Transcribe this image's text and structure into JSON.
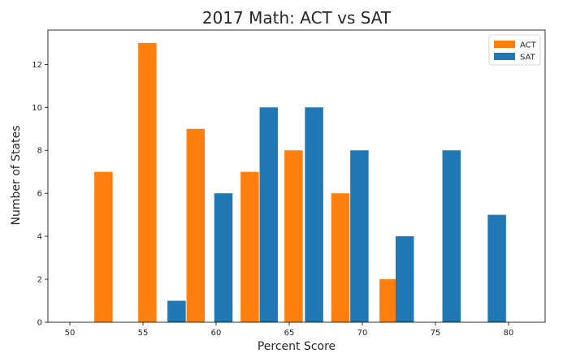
{
  "chart_data": {
    "type": "bar",
    "title": "2017 Math: ACT vs SAT",
    "xlabel": "Percent Score",
    "ylabel": "Number of States",
    "xlim": [
      48.5,
      82.5
    ],
    "ylim": [
      0,
      13.6
    ],
    "x_ticks": [
      50,
      55,
      60,
      65,
      70,
      75,
      80
    ],
    "y_ticks": [
      0,
      2,
      4,
      6,
      8,
      10,
      12
    ],
    "grid": false,
    "legend_position": "top-right",
    "bar_width": 1.25,
    "series": [
      {
        "name": "ACT",
        "color": "#ff7f0e",
        "points": [
          {
            "x": 52.3,
            "y": 7
          },
          {
            "x": 55.3,
            "y": 13
          },
          {
            "x": 58.6,
            "y": 9
          },
          {
            "x": 62.3,
            "y": 7
          },
          {
            "x": 65.3,
            "y": 8
          },
          {
            "x": 68.5,
            "y": 6
          },
          {
            "x": 71.8,
            "y": 2
          }
        ]
      },
      {
        "name": "SAT",
        "color": "#1f77b4",
        "points": [
          {
            "x": 57.3,
            "y": 1
          },
          {
            "x": 60.5,
            "y": 6
          },
          {
            "x": 63.6,
            "y": 10
          },
          {
            "x": 66.7,
            "y": 10
          },
          {
            "x": 69.8,
            "y": 8
          },
          {
            "x": 72.9,
            "y": 4
          },
          {
            "x": 76.1,
            "y": 8
          },
          {
            "x": 79.2,
            "y": 5
          }
        ]
      }
    ]
  }
}
